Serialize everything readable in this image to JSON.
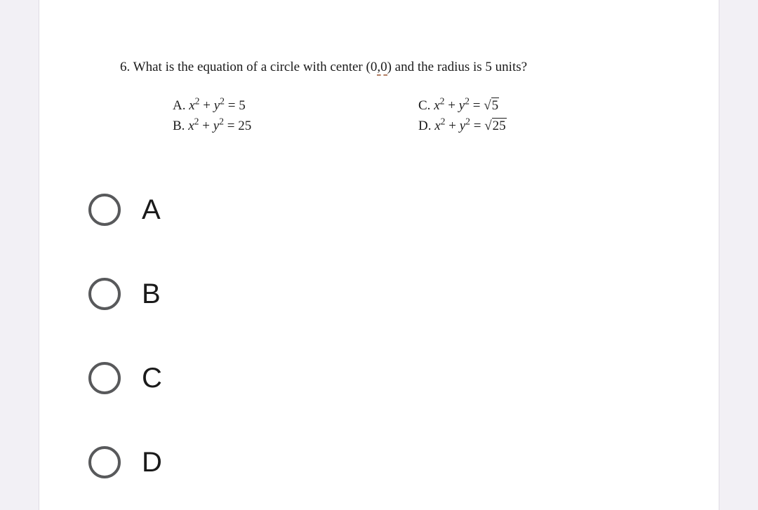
{
  "question": {
    "number": "6.",
    "text_pre": "What is the equation of a circle with center (0",
    "text_mid": ",0",
    "text_post": ") and the radius is 5 units?"
  },
  "choices": {
    "a": {
      "prefix": "A. ",
      "lhs_x": "x",
      "lhs_y": "y",
      "eq": " = ",
      "rhs": "5"
    },
    "b": {
      "prefix": "B. ",
      "lhs_x": "x",
      "lhs_y": "y",
      "eq": " = ",
      "rhs": "25"
    },
    "c": {
      "prefix": "C. ",
      "lhs_x": "x",
      "lhs_y": "y",
      "eq": " = ",
      "rhs": "5"
    },
    "d": {
      "prefix": "D. ",
      "lhs_x": "x",
      "lhs_y": "y",
      "eq": " = ",
      "rhs": "25"
    }
  },
  "answers": {
    "a": "A",
    "b": "B",
    "c": "C",
    "d": "D"
  }
}
